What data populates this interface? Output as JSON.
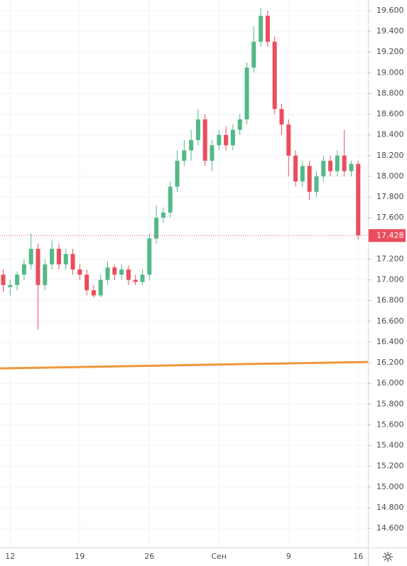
{
  "chart_data": {
    "type": "candlestick",
    "categories": [
      null,
      "12",
      null,
      null,
      null,
      null,
      null,
      null,
      null,
      null,
      null,
      "19",
      null,
      null,
      null,
      null,
      null,
      null,
      null,
      null,
      null,
      "26",
      null,
      null,
      null,
      null,
      null,
      null,
      null,
      null,
      null,
      "Сен",
      null,
      null,
      null,
      null,
      null,
      null,
      null,
      null,
      null,
      "9",
      null,
      null,
      null,
      null,
      null,
      null,
      null,
      null,
      null,
      "16"
    ],
    "open": [
      17.05,
      16.93,
      16.95,
      17.05,
      17.15,
      17.3,
      16.95,
      17.15,
      17.3,
      17.15,
      17.25,
      17.1,
      17.05,
      16.9,
      16.85,
      17.0,
      17.12,
      17.05,
      17.1,
      17.0,
      16.98,
      17.05,
      17.4,
      17.6,
      17.65,
      17.9,
      18.15,
      18.25,
      18.35,
      18.55,
      18.15,
      18.3,
      18.4,
      18.3,
      18.45,
      18.55,
      19.05,
      19.3,
      19.55,
      19.3,
      18.65,
      18.5,
      18.2,
      17.95,
      18.1,
      17.85,
      18.0,
      18.15,
      18.05,
      18.2,
      18.05,
      18.12
    ],
    "high": [
      17.1,
      17.0,
      17.08,
      17.2,
      17.45,
      17.35,
      17.2,
      17.38,
      17.35,
      17.3,
      17.3,
      17.15,
      17.1,
      16.95,
      17.05,
      17.18,
      17.15,
      17.15,
      17.14,
      17.05,
      17.1,
      17.45,
      17.72,
      17.7,
      17.95,
      18.25,
      18.35,
      18.45,
      18.65,
      18.6,
      18.35,
      18.45,
      18.48,
      18.5,
      18.6,
      19.1,
      19.45,
      19.63,
      19.6,
      19.35,
      18.7,
      18.55,
      18.25,
      18.15,
      18.15,
      18.05,
      18.2,
      18.2,
      18.25,
      18.45,
      18.15,
      18.15
    ],
    "low": [
      16.88,
      16.85,
      16.9,
      17.0,
      17.1,
      16.52,
      16.9,
      17.1,
      17.1,
      17.1,
      17.05,
      17.0,
      16.85,
      16.83,
      16.83,
      16.95,
      17.0,
      17.0,
      16.95,
      16.95,
      16.95,
      17.0,
      17.35,
      17.55,
      17.6,
      17.85,
      18.1,
      18.15,
      18.3,
      18.1,
      18.05,
      18.25,
      18.25,
      18.25,
      18.4,
      18.5,
      19.0,
      19.25,
      19.25,
      18.6,
      18.4,
      18.0,
      17.9,
      17.9,
      17.77,
      17.8,
      17.95,
      18.0,
      18.0,
      18.0,
      18.0,
      17.39
    ],
    "close": [
      16.95,
      16.95,
      17.05,
      17.15,
      17.3,
      16.95,
      17.15,
      17.3,
      17.15,
      17.25,
      17.1,
      17.05,
      16.9,
      16.85,
      17.0,
      17.12,
      17.05,
      17.1,
      17.0,
      16.98,
      17.05,
      17.4,
      17.6,
      17.65,
      17.9,
      18.15,
      18.25,
      18.35,
      18.55,
      18.15,
      18.3,
      18.4,
      18.3,
      18.45,
      18.55,
      19.05,
      19.3,
      19.55,
      19.3,
      18.65,
      18.5,
      18.2,
      17.95,
      18.1,
      17.85,
      18.0,
      18.15,
      18.05,
      18.2,
      18.05,
      18.12,
      17.43
    ],
    "up_color": "#53b987",
    "down_color": "#eb4d5c",
    "last_price": 17.428,
    "trendline": {
      "start": 16.145,
      "end": 16.207,
      "color": "#f0973a"
    },
    "ylim": [
      14.415,
      19.703
    ],
    "yticks": [
      {
        "value": 14.6,
        "label": "14.600"
      },
      {
        "value": 14.8,
        "label": "14.800"
      },
      {
        "value": 15.0,
        "label": "15.000"
      },
      {
        "value": 15.2,
        "label": "15.200"
      },
      {
        "value": 15.4,
        "label": "15.400"
      },
      {
        "value": 15.6,
        "label": "15.600"
      },
      {
        "value": 15.8,
        "label": "15.800"
      },
      {
        "value": 16.0,
        "label": "16.000"
      },
      {
        "value": 16.2,
        "label": "16.200"
      },
      {
        "value": 16.4,
        "label": "16.400"
      },
      {
        "value": 16.6,
        "label": "16.600"
      },
      {
        "value": 16.8,
        "label": "16.800"
      },
      {
        "value": 17.0,
        "label": "17.000"
      },
      {
        "value": 17.2,
        "label": "17.200"
      },
      {
        "value": 17.4,
        "label": "17.400"
      },
      {
        "value": 17.6,
        "label": "17.600"
      },
      {
        "value": 17.8,
        "label": "17.800"
      },
      {
        "value": 18.0,
        "label": "18.000"
      },
      {
        "value": 18.2,
        "label": "18.200"
      },
      {
        "value": 18.4,
        "label": "18.400"
      },
      {
        "value": 18.6,
        "label": "18.600"
      },
      {
        "value": 18.8,
        "label": "18.800"
      },
      {
        "value": 19.0,
        "label": "19.000"
      },
      {
        "value": 19.2,
        "label": "19.200"
      },
      {
        "value": 19.4,
        "label": "19.400"
      },
      {
        "value": 19.6,
        "label": "19.600"
      }
    ],
    "grid": true
  }
}
